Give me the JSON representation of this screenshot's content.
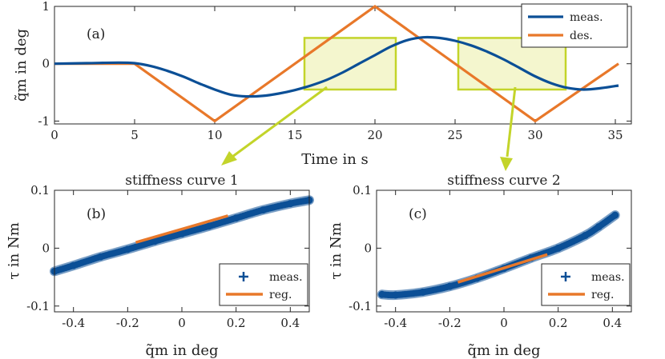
{
  "chart_data": [
    {
      "type": "line",
      "panel": "(a)",
      "title": "",
      "xlabel": "Time in s",
      "ylabel": "q̃m in deg",
      "xlim": [
        0,
        36
      ],
      "ylim": [
        -1.05,
        1
      ],
      "xticks": [
        "0",
        "5",
        "10",
        "15",
        "20",
        "25",
        "30",
        "35"
      ],
      "yticks": [
        "-1",
        "0",
        "1"
      ],
      "legend": [
        "meas.",
        "des."
      ],
      "legend_position": "top-right",
      "series": [
        {
          "name": "meas.",
          "color": "#0b4f96",
          "x": [
            0,
            2,
            4,
            5,
            6,
            7,
            8,
            9,
            10,
            11,
            12,
            13,
            14,
            15,
            16,
            17,
            18,
            19,
            20,
            21,
            22,
            23,
            24,
            25,
            26,
            27,
            28,
            29,
            30,
            31,
            32,
            33,
            34,
            35.2
          ],
          "y": [
            0,
            0.01,
            0.02,
            0.01,
            -0.04,
            -0.12,
            -0.22,
            -0.34,
            -0.45,
            -0.54,
            -0.57,
            -0.56,
            -0.52,
            -0.46,
            -0.38,
            -0.28,
            -0.15,
            0.0,
            0.15,
            0.3,
            0.41,
            0.46,
            0.45,
            0.4,
            0.32,
            0.21,
            0.08,
            -0.07,
            -0.22,
            -0.34,
            -0.42,
            -0.45,
            -0.43,
            -0.38
          ]
        },
        {
          "name": "des.",
          "color": "#e8782a",
          "x": [
            0,
            5,
            10,
            20,
            30,
            35.2
          ],
          "y": [
            0,
            0,
            -1,
            1,
            -1,
            0
          ]
        }
      ],
      "highlight_boxes": [
        {
          "x": [
            15.6,
            21.3
          ],
          "y": [
            -0.45,
            0.45
          ]
        },
        {
          "x": [
            25.2,
            31.9
          ],
          "y": [
            -0.45,
            0.45
          ]
        }
      ]
    },
    {
      "type": "scatter",
      "panel": "(b)",
      "title": "stiffness curve 1",
      "xlabel": "q̃m in deg",
      "ylabel": "τ in Nm",
      "xlim": [
        -0.47,
        0.47
      ],
      "ylim": [
        -0.11,
        0.1
      ],
      "xticks": [
        "-0.4",
        "-0.2",
        "0",
        "0.2",
        "0.4"
      ],
      "yticks": [
        "-0.1",
        "0",
        "0.1"
      ],
      "legend": [
        "meas.",
        "reg."
      ],
      "legend_position": "bottom-right",
      "series": [
        {
          "name": "meas.",
          "color": "#0b4f96",
          "x": [
            -0.47,
            -0.4,
            -0.3,
            -0.2,
            -0.1,
            0.0,
            0.1,
            0.2,
            0.3,
            0.4,
            0.47
          ],
          "y": [
            -0.04,
            -0.03,
            -0.015,
            -0.002,
            0.012,
            0.025,
            0.038,
            0.052,
            0.066,
            0.077,
            0.083
          ]
        },
        {
          "name": "reg.",
          "color": "#e8782a",
          "x": [
            -0.17,
            0.17
          ],
          "y": [
            0.01,
            0.056
          ]
        }
      ]
    },
    {
      "type": "scatter",
      "panel": "(c)",
      "title": "stiffness curve 2",
      "xlabel": "q̃m in deg",
      "ylabel": "τ in Nm",
      "xlim": [
        -0.47,
        0.47
      ],
      "ylim": [
        -0.11,
        0.1
      ],
      "xticks": [
        "-0.4",
        "-0.2",
        "0",
        "0.2",
        "0.4"
      ],
      "yticks": [
        "-0.1",
        "0",
        "0.1"
      ],
      "legend": [
        "meas.",
        "reg."
      ],
      "legend_position": "bottom-right",
      "series": [
        {
          "name": "meas.",
          "color": "#0b4f96",
          "x": [
            -0.45,
            -0.4,
            -0.3,
            -0.2,
            -0.1,
            0.0,
            0.1,
            0.2,
            0.3,
            0.35,
            0.41
          ],
          "y": [
            -0.08,
            -0.081,
            -0.076,
            -0.066,
            -0.052,
            -0.035,
            -0.017,
            0.0,
            0.022,
            0.037,
            0.057
          ]
        },
        {
          "name": "reg.",
          "color": "#e8782a",
          "x": [
            -0.17,
            0.16
          ],
          "y": [
            -0.059,
            -0.011
          ]
        }
      ]
    }
  ]
}
